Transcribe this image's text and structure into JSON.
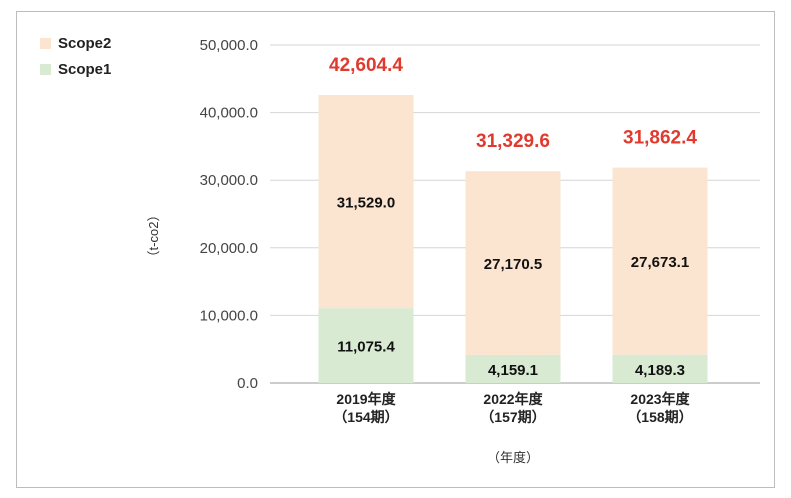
{
  "chart_data": {
    "type": "bar",
    "stacked": true,
    "categories": [
      [
        "2019年度",
        "（154期）"
      ],
      [
        "2022年度",
        "（157期）"
      ],
      [
        "2023年度",
        "（158期）"
      ]
    ],
    "series": [
      {
        "name": "Scope1",
        "values": [
          11075.4,
          4159.1,
          4189.3
        ],
        "color": "#d9ead3"
      },
      {
        "name": "Scope2",
        "values": [
          31529.0,
          27170.5,
          27673.1
        ],
        "color": "#fbe5d1"
      }
    ],
    "segment_labels": {
      "Scope1": [
        "11,075.4",
        "4,159.1",
        "4,189.3"
      ],
      "Scope2": [
        "31,529.0",
        "27,170.5",
        "27,673.1"
      ]
    },
    "totals": [
      42604.4,
      31329.6,
      31862.4
    ],
    "total_labels": [
      "42,604.4",
      "31,329.6",
      "31,862.4"
    ],
    "total_color": "#e03a2f",
    "ylabel": "（t-co2）",
    "xlabel": "（年度）",
    "ylim": [
      0,
      50000
    ],
    "yticks": [
      0,
      10000,
      20000,
      30000,
      40000,
      50000
    ],
    "ytick_labels": [
      "0.0",
      "10,000.0",
      "20,000.0",
      "30,000.0",
      "40,000.0",
      "50,000.0"
    ],
    "grid": true,
    "legend_position": "top-left",
    "legend": [
      {
        "name": "Scope2",
        "color": "#fbe5d1"
      },
      {
        "name": "Scope1",
        "color": "#d9ead3"
      }
    ]
  }
}
